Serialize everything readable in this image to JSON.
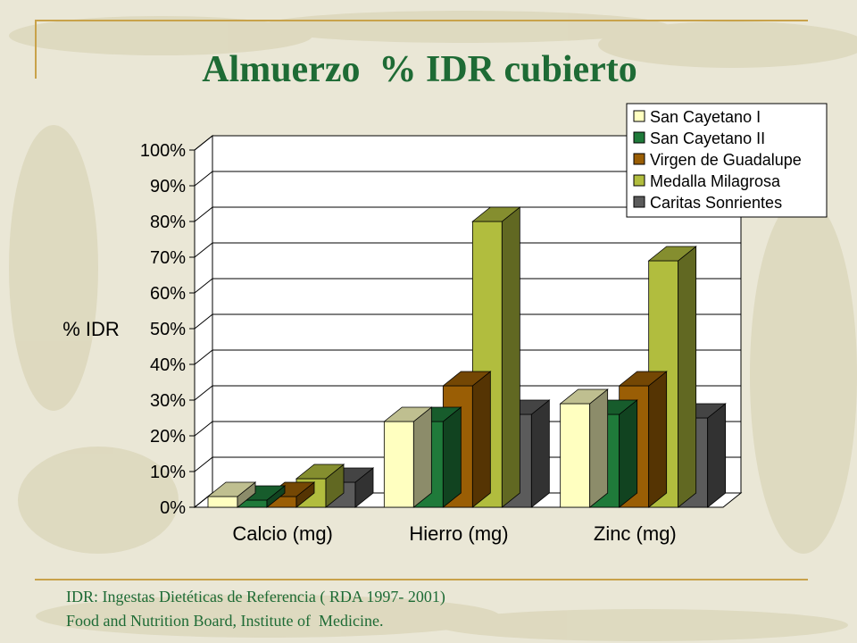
{
  "slide": {
    "title": "Almuerzo  % IDR cubierto",
    "footnote_line1": "IDR: Ingestas Dietéticas de Referencia ( RDA 1997- 2001)",
    "footnote_line2": "Food and Nutrition Board, Institute of  Medicine."
  },
  "colors": {
    "background": "#eae7d6",
    "title_text": "#1e6b35",
    "accent_line": "#c8a24a"
  },
  "chart_data": {
    "type": "bar",
    "title": "",
    "xlabel": "",
    "ylabel": "% IDR",
    "ylim": [
      0,
      100
    ],
    "yticks": [
      "0%",
      "10%",
      "20%",
      "30%",
      "40%",
      "50%",
      "60%",
      "70%",
      "80%",
      "90%",
      "100%"
    ],
    "grid": true,
    "legend_position": "top-right",
    "categories": [
      "Calcio (mg)",
      "Hierro (mg)",
      "Zinc (mg)"
    ],
    "series": [
      {
        "name": "San Cayetano I",
        "values": [
          3,
          24,
          29
        ],
        "color": "#ffffc0"
      },
      {
        "name": "San Cayetano II",
        "values": [
          2,
          24,
          26
        ],
        "color": "#1f7a3a"
      },
      {
        "name": "Virgen de Guadalupe",
        "values": [
          3,
          34,
          34
        ],
        "color": "#9a5e05"
      },
      {
        "name": "Medalla Milagrosa",
        "values": [
          8,
          80,
          69
        ],
        "color": "#b1bd3e"
      },
      {
        "name": "Caritas Sonrientes",
        "values": [
          7,
          26,
          25
        ],
        "color": "#5b5b5b"
      }
    ]
  }
}
